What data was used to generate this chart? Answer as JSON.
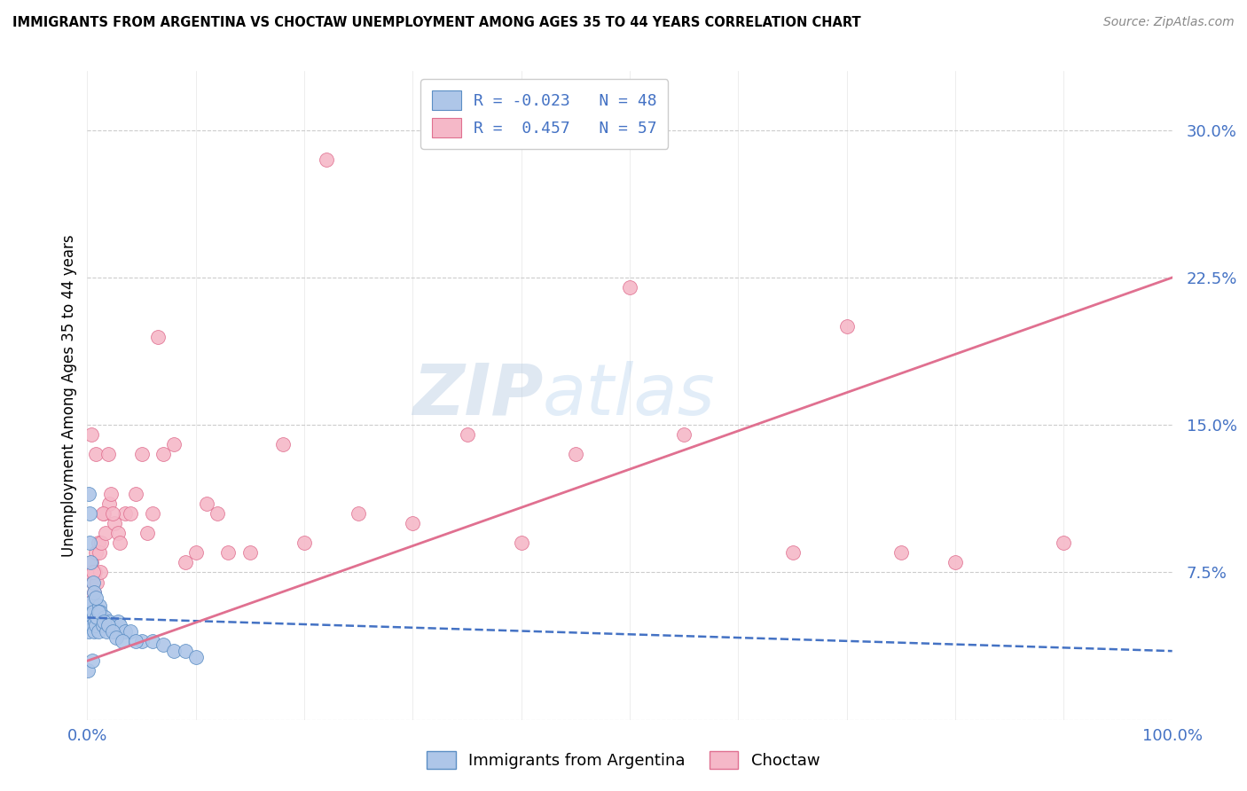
{
  "title": "IMMIGRANTS FROM ARGENTINA VS CHOCTAW UNEMPLOYMENT AMONG AGES 35 TO 44 YEARS CORRELATION CHART",
  "source": "Source: ZipAtlas.com",
  "ylabel": "Unemployment Among Ages 35 to 44 years",
  "watermark_zip": "ZIP",
  "watermark_atlas": "atlas",
  "blue_R": -0.023,
  "blue_N": 48,
  "pink_R": 0.457,
  "pink_N": 57,
  "blue_color": "#aec6e8",
  "pink_color": "#f5b8c8",
  "blue_edge_color": "#5b8ec4",
  "pink_edge_color": "#e07090",
  "blue_line_color": "#4472c4",
  "pink_line_color": "#e07090",
  "legend_label_1": "Immigrants from Argentina",
  "legend_label_2": "Choctaw",
  "blue_points_x": [
    0.1,
    0.15,
    0.2,
    0.25,
    0.3,
    0.35,
    0.4,
    0.45,
    0.5,
    0.6,
    0.7,
    0.8,
    0.9,
    1.0,
    1.1,
    1.2,
    1.4,
    1.6,
    1.8,
    2.0,
    2.2,
    2.5,
    2.8,
    3.0,
    3.5,
    4.0,
    5.0,
    6.0,
    7.0,
    8.0,
    9.0,
    10.0,
    0.12,
    0.18,
    0.22,
    0.32,
    0.55,
    0.65,
    0.75,
    1.05,
    1.5,
    1.9,
    2.3,
    2.7,
    3.2,
    4.5,
    0.08,
    0.42
  ],
  "blue_points_y": [
    5.0,
    4.5,
    5.5,
    5.2,
    5.8,
    6.0,
    5.3,
    4.8,
    5.5,
    4.5,
    5.0,
    4.8,
    5.2,
    4.5,
    5.8,
    5.5,
    4.8,
    5.2,
    4.5,
    5.0,
    4.8,
    4.5,
    5.0,
    4.8,
    4.5,
    4.5,
    4.0,
    4.0,
    3.8,
    3.5,
    3.5,
    3.2,
    11.5,
    10.5,
    9.0,
    8.0,
    7.0,
    6.5,
    6.2,
    5.5,
    5.0,
    4.8,
    4.5,
    4.2,
    4.0,
    4.0,
    2.5,
    3.0
  ],
  "pink_points_x": [
    0.1,
    0.2,
    0.3,
    0.4,
    0.5,
    0.6,
    0.7,
    0.8,
    0.9,
    1.0,
    1.1,
    1.2,
    1.3,
    1.5,
    1.7,
    2.0,
    2.2,
    2.5,
    2.8,
    3.0,
    3.5,
    4.0,
    4.5,
    5.0,
    5.5,
    6.0,
    7.0,
    8.0,
    9.0,
    10.0,
    11.0,
    12.0,
    13.0,
    15.0,
    18.0,
    20.0,
    25.0,
    30.0,
    35.0,
    40.0,
    45.0,
    55.0,
    65.0,
    75.0,
    0.15,
    0.35,
    0.55,
    0.75,
    1.4,
    1.9,
    2.3,
    6.5,
    22.0,
    50.0,
    70.0,
    80.0,
    90.0
  ],
  "pink_points_y": [
    5.5,
    6.0,
    7.5,
    8.0,
    7.0,
    6.5,
    7.5,
    8.5,
    7.0,
    9.0,
    8.5,
    7.5,
    9.0,
    10.5,
    9.5,
    11.0,
    11.5,
    10.0,
    9.5,
    9.0,
    10.5,
    10.5,
    11.5,
    13.5,
    9.5,
    10.5,
    13.5,
    14.0,
    8.0,
    8.5,
    11.0,
    10.5,
    8.5,
    8.5,
    14.0,
    9.0,
    10.5,
    10.0,
    14.5,
    9.0,
    13.5,
    14.5,
    8.5,
    8.5,
    5.5,
    14.5,
    7.5,
    13.5,
    10.5,
    13.5,
    10.5,
    19.5,
    28.5,
    22.0,
    20.0,
    8.0,
    9.0
  ],
  "xlim": [
    0,
    100
  ],
  "ylim": [
    0,
    33
  ],
  "yticks": [
    0,
    7.5,
    15.0,
    22.5,
    30.0
  ],
  "ytick_labels": [
    "",
    "7.5%",
    "15.0%",
    "22.5%",
    "30.0%"
  ],
  "xtick_positions": [
    0,
    10,
    20,
    30,
    40,
    50,
    60,
    70,
    80,
    90,
    100
  ],
  "xtick_edge_positions": [
    0,
    100
  ],
  "xtick_edge_labels": [
    "0.0%",
    "100.0%"
  ],
  "grid_x_positions": [
    10,
    20,
    30,
    40,
    50,
    60,
    70,
    80,
    90
  ],
  "grid_color": "#cccccc",
  "bg_color": "#ffffff",
  "blue_trend_x": [
    0,
    100
  ],
  "blue_trend_y": [
    5.2,
    3.5
  ],
  "pink_trend_x": [
    0,
    100
  ],
  "pink_trend_y": [
    3.0,
    22.5
  ]
}
